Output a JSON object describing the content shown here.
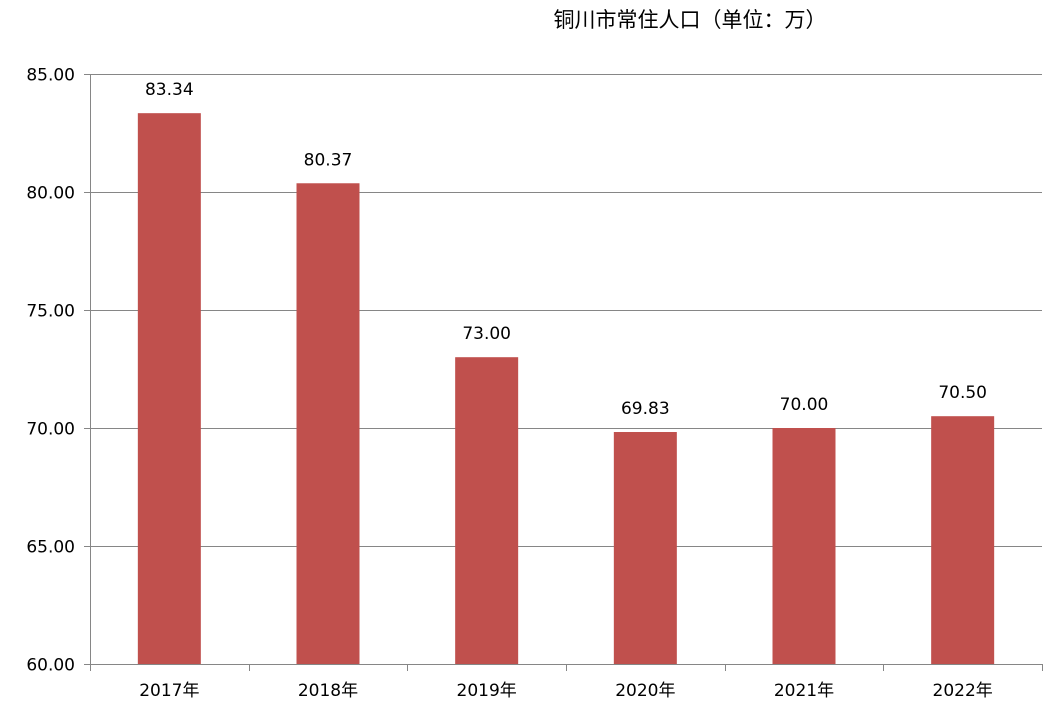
{
  "chart_data": {
    "type": "bar",
    "title": "铜川市常住人口（单位：万）",
    "categories": [
      "2017年",
      "2018年",
      "2019年",
      "2020年",
      "2021年",
      "2022年"
    ],
    "series": [
      {
        "values": [
          83.34,
          80.37,
          73.0,
          69.83,
          70.0,
          70.5
        ],
        "value_labels": [
          "83.34",
          "80.37",
          "73.00",
          "69.83",
          "70.00",
          "70.50"
        ]
      }
    ],
    "ylim": [
      60,
      85
    ],
    "yticks": [
      "60.00",
      "65.00",
      "70.00",
      "75.00",
      "80.00",
      "85.00"
    ],
    "grid": true,
    "legend": "none",
    "xlabel": "",
    "ylabel": ""
  },
  "colors": {
    "bar": "#C0504D",
    "grid": "#868686",
    "axis": "#868686",
    "text": "#000000"
  }
}
